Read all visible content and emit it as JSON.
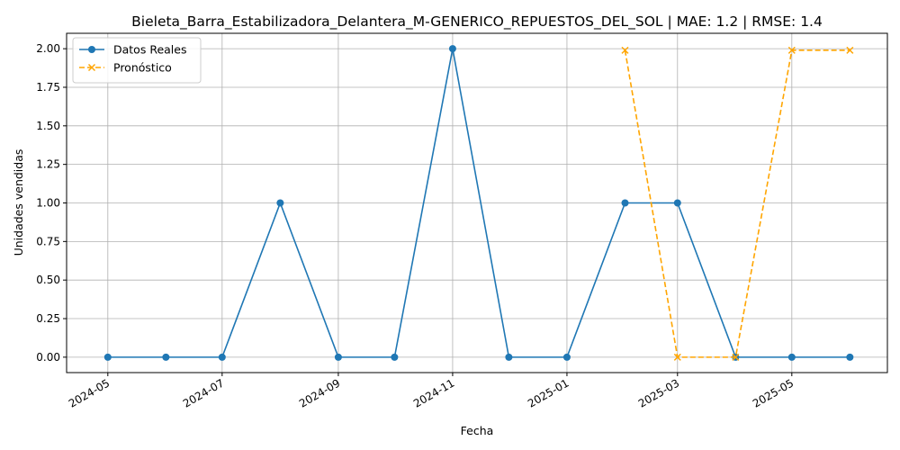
{
  "chart_data": {
    "type": "line",
    "title": "Bieleta_Barra_Estabilizadora_Delantera_M-GENERICO_REPUESTOS_DEL_SOL | MAE: 1.2 | RMSE: 1.4",
    "xlabel": "Fecha",
    "ylabel": "Unidades vendidas",
    "x_ticks": [
      "2024-05",
      "2024-07",
      "2024-09",
      "2024-11",
      "2025-01",
      "2025-03",
      "2025-05"
    ],
    "y_ticks": [
      "0.00",
      "0.25",
      "0.50",
      "0.75",
      "1.00",
      "1.25",
      "1.50",
      "1.75",
      "2.00"
    ],
    "ylim": [
      -0.1,
      2.1
    ],
    "xlim": [
      "2024-04-09",
      "2025-06-21"
    ],
    "grid": true,
    "legend_position": "upper-left",
    "series": [
      {
        "name": "Datos Reales",
        "color": "#1f77b4",
        "style": "solid",
        "marker": "circle",
        "x": [
          "2024-05-01",
          "2024-06-01",
          "2024-07-01",
          "2024-08-01",
          "2024-09-01",
          "2024-10-01",
          "2024-11-01",
          "2024-12-01",
          "2025-01-01",
          "2025-02-01",
          "2025-03-01",
          "2025-04-01",
          "2025-05-01",
          "2025-06-01"
        ],
        "values": [
          0,
          0,
          0,
          1,
          0,
          0,
          2,
          0,
          0,
          1,
          1,
          0,
          0,
          0
        ]
      },
      {
        "name": "Pronóstico",
        "color": "#ffa500",
        "style": "dashed",
        "marker": "x",
        "x": [
          "2025-02-01",
          "2025-03-01",
          "2025-04-01",
          "2025-05-01",
          "2025-06-01"
        ],
        "values": [
          1.99,
          0.0,
          0.0,
          1.99,
          1.99
        ]
      }
    ]
  }
}
